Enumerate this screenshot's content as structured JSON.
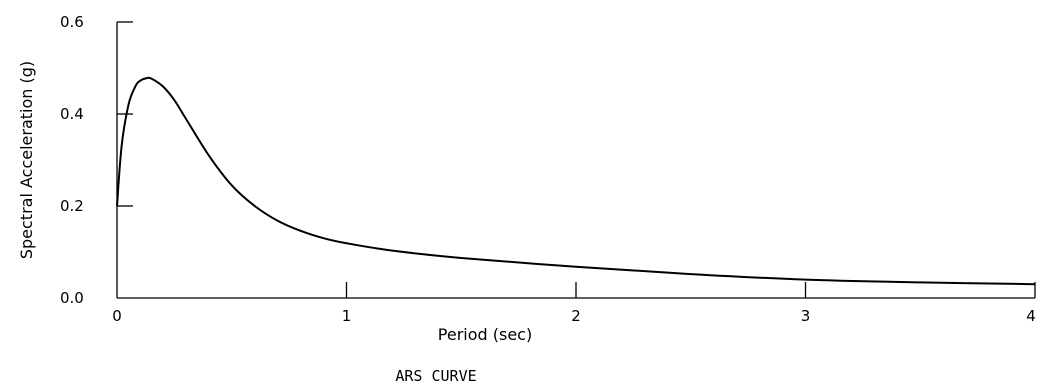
{
  "chart_data": {
    "type": "line",
    "title": "",
    "caption": "ARS CURVE",
    "xlabel": "Period (sec)",
    "ylabel": "Spectral Acceleration (g)",
    "xlim": [
      0,
      4
    ],
    "ylim": [
      0,
      0.6
    ],
    "x_ticks": [
      "0",
      "1",
      "2",
      "3",
      "4"
    ],
    "y_ticks": [
      "0.0",
      "0.2",
      "0.4",
      "0.6"
    ],
    "grid": false,
    "legend": "none",
    "x": [
      0.0,
      0.02,
      0.05,
      0.08,
      0.1,
      0.13,
      0.15,
      0.2,
      0.25,
      0.3,
      0.4,
      0.5,
      0.6,
      0.7,
      0.8,
      0.9,
      1.0,
      1.2,
      1.5,
      2.0,
      2.5,
      3.0,
      3.5,
      4.0
    ],
    "y": [
      0.2,
      0.33,
      0.42,
      0.46,
      0.472,
      0.478,
      0.477,
      0.46,
      0.43,
      0.39,
      0.31,
      0.245,
      0.2,
      0.168,
      0.146,
      0.13,
      0.119,
      0.103,
      0.087,
      0.068,
      0.052,
      0.04,
      0.034,
      0.03
    ]
  }
}
